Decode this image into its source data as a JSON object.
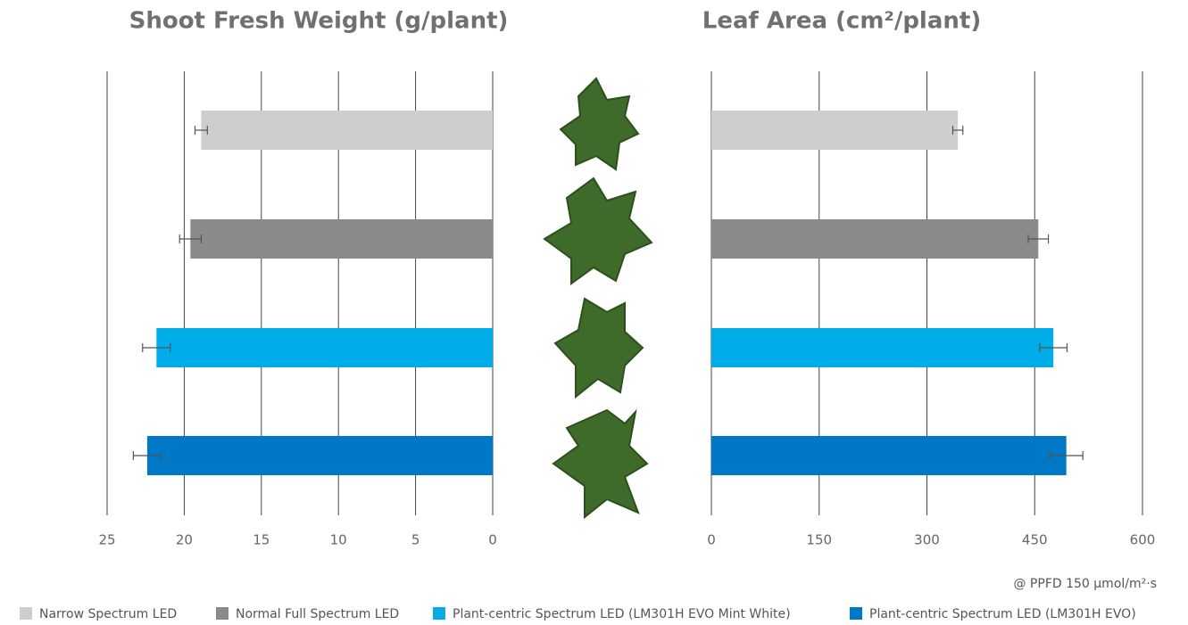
{
  "chart_data": [
    {
      "type": "bar",
      "orientation": "horizontal",
      "title": "Shoot Fresh Weight (g/plant)",
      "values": [
        18.9,
        19.6,
        21.8,
        22.4
      ],
      "errors": [
        0.4,
        0.7,
        0.9,
        0.9
      ],
      "xlim": [
        0,
        25
      ],
      "xticks": [
        0,
        5,
        10,
        15,
        20,
        25
      ],
      "x_reversed": true,
      "grid": true
    },
    {
      "type": "bar",
      "orientation": "horizontal",
      "title": "Leaf Area (cm²/plant)",
      "values": [
        343,
        455,
        476,
        494
      ],
      "errors": [
        7,
        14,
        19,
        23
      ],
      "xlim": [
        0,
        600
      ],
      "xticks": [
        0,
        150,
        300,
        450,
        600
      ],
      "x_reversed": false,
      "grid": true
    }
  ],
  "legend": {
    "items": [
      {
        "name": "Narrow Spectrum LED",
        "color": "#cdcfcf"
      },
      {
        "name": "Normal Full Spectrum LED",
        "color": "#8a8a8a"
      },
      {
        "name": "Plant-centric Spectrum LED (LM301H EVO Mint White)",
        "color": "#00ade8"
      },
      {
        "name": "Plant-centric Spectrum LED (LM301H EVO)",
        "color": "#0078c8"
      }
    ]
  },
  "note": "@ PPFD 150 µmol/m²·s"
}
